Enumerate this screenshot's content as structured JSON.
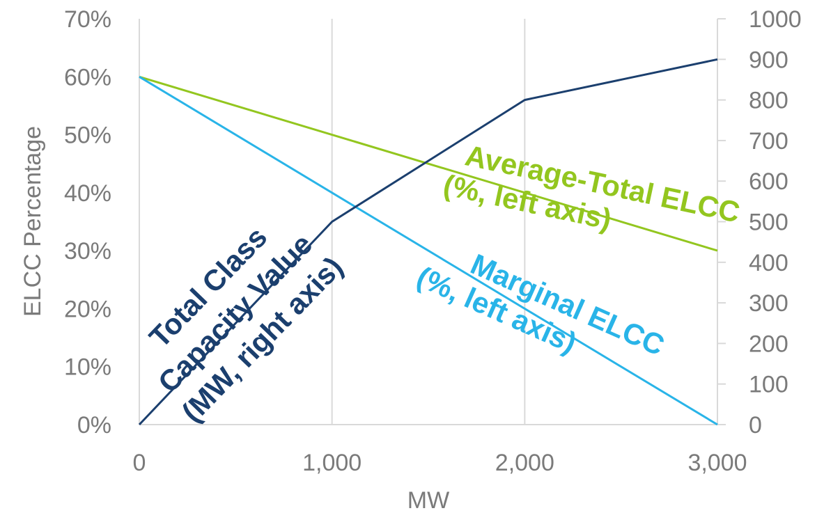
{
  "chart_data": {
    "type": "line",
    "title": "",
    "xlabel": "MW",
    "ylabel": "ELCC Percentage",
    "y2label": "",
    "xlim": [
      0,
      3000
    ],
    "ylim": [
      0,
      70
    ],
    "y2lim": [
      0,
      1000
    ],
    "x_ticks": [
      "0",
      "1,000",
      "2,000",
      "3,000"
    ],
    "y_ticks": [
      "0%",
      "10%",
      "20%",
      "30%",
      "40%",
      "50%",
      "60%",
      "70%"
    ],
    "y2_ticks": [
      "0",
      "100",
      "200",
      "300",
      "400",
      "500",
      "600",
      "700",
      "800",
      "900",
      "1000"
    ],
    "grid": "vertical",
    "series": [
      {
        "name": "",
        "axis": "right",
        "color": "#1b3f6e",
        "x": [
          0,
          1000,
          2000,
          3000
        ],
        "values": [
          0,
          500,
          800,
          900
        ]
      },
      {
        "name": "",
        "axis": "left",
        "color": "#93c61f",
        "x": [
          0,
          3000
        ],
        "values": [
          60,
          30
        ]
      },
      {
        "name": "",
        "axis": "left",
        "color": "#29b4e8",
        "x": [
          0,
          3000
        ],
        "values": [
          60,
          0
        ]
      }
    ],
    "annotations": [
      {
        "color": "#1b3f6e",
        "lines": [
          "Total Class",
          "Capacity Value",
          "(MW, right axis)"
        ]
      },
      {
        "color": "#93c61f",
        "lines": [
          "Average-Total ELCC",
          "(%, left axis)"
        ]
      },
      {
        "color": "#29b4e8",
        "lines": [
          "Marginal ELCC",
          "(%, left axis)"
        ]
      }
    ]
  }
}
